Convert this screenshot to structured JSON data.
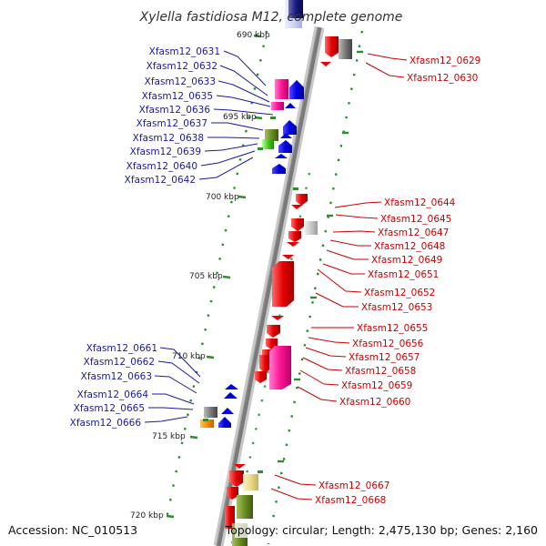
{
  "title": "Xylella fastidiosa M12, complete genome",
  "accession_text": "Accession: NC_010513",
  "summary_text": "Topology: circular; Length: 2,475,130 bp; Genes: 2,160",
  "colors": {
    "forward_label": "#cc0000",
    "reverse_label": "#1a1aa0",
    "backbone": "#7a7a7a",
    "tick": "#2e8b2e"
  },
  "ruler": [
    {
      "label": "690 kbp"
    },
    {
      "label": "695 kbp"
    },
    {
      "label": "700 kbp"
    },
    {
      "label": "705 kbp"
    },
    {
      "label": "710 kbp"
    },
    {
      "label": "715 kbp"
    },
    {
      "label": "720 kbp"
    }
  ],
  "labels_reverse": [
    {
      "name": "Xfasm12_0631"
    },
    {
      "name": "Xfasm12_0632"
    },
    {
      "name": "Xfasm12_0633"
    },
    {
      "name": "Xfasm12_0635"
    },
    {
      "name": "Xfasm12_0636"
    },
    {
      "name": "Xfasm12_0637"
    },
    {
      "name": "Xfasm12_0638"
    },
    {
      "name": "Xfasm12_0639"
    },
    {
      "name": "Xfasm12_0640"
    },
    {
      "name": "Xfasm12_0642"
    },
    {
      "name": "Xfasm12_0661"
    },
    {
      "name": "Xfasm12_0662"
    },
    {
      "name": "Xfasm12_0663"
    },
    {
      "name": "Xfasm12_0664"
    },
    {
      "name": "Xfasm12_0665"
    },
    {
      "name": "Xfasm12_0666"
    }
  ],
  "labels_forward": [
    {
      "name": "Xfasm12_0629"
    },
    {
      "name": "Xfasm12_0630"
    },
    {
      "name": "Xfasm12_0644"
    },
    {
      "name": "Xfasm12_0645"
    },
    {
      "name": "Xfasm12_0647"
    },
    {
      "name": "Xfasm12_0648"
    },
    {
      "name": "Xfasm12_0649"
    },
    {
      "name": "Xfasm12_0651"
    },
    {
      "name": "Xfasm12_0652"
    },
    {
      "name": "Xfasm12_0653"
    },
    {
      "name": "Xfasm12_0655"
    },
    {
      "name": "Xfasm12_0656"
    },
    {
      "name": "Xfasm12_0657"
    },
    {
      "name": "Xfasm12_0658"
    },
    {
      "name": "Xfasm12_0659"
    },
    {
      "name": "Xfasm12_0660"
    },
    {
      "name": "Xfasm12_0667"
    },
    {
      "name": "Xfasm12_0668"
    }
  ]
}
